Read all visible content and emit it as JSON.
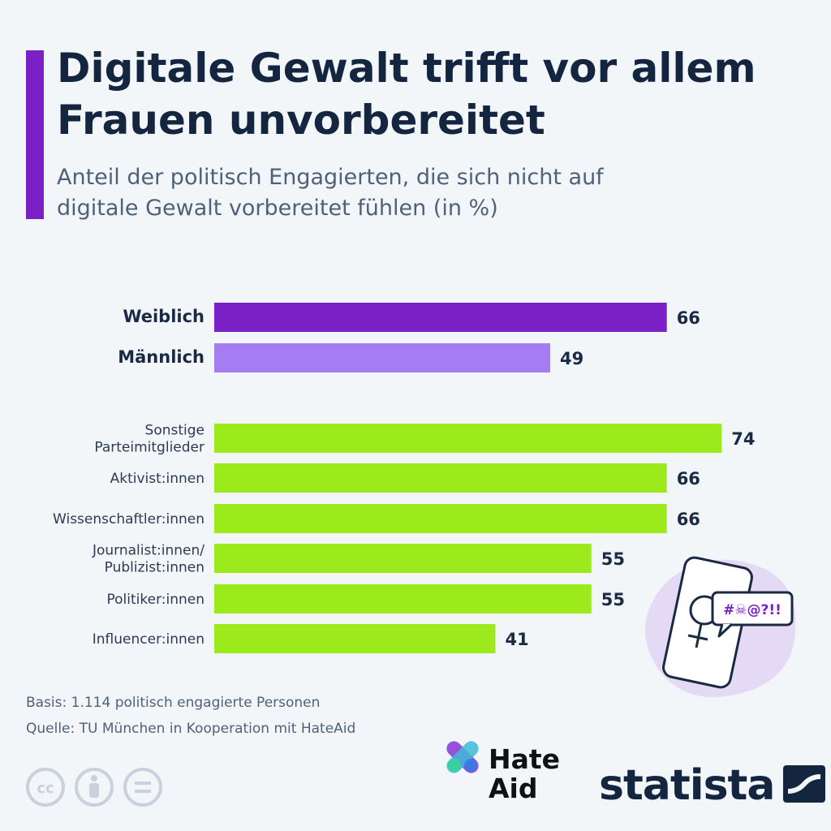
{
  "header": {
    "title": "Digitale Gewalt trifft vor allem Frauen unvorbereitet",
    "subtitle": "Anteil der politisch Engagierten, die sich nicht auf digitale Gewalt vorbereitet fühlen (in %)"
  },
  "chart_data": {
    "type": "bar",
    "orientation": "horizontal",
    "title": "Digitale Gewalt trifft vor allem Frauen unvorbereitet",
    "subtitle": "Anteil der politisch Engagierten, die sich nicht auf digitale Gewalt vorbereitet fühlen (in %)",
    "xlim": [
      0,
      100
    ],
    "grid": false,
    "groups": [
      {
        "kind": "gender",
        "categories": [
          "Weiblich",
          "Männlich"
        ],
        "values": [
          66,
          49
        ],
        "colors": [
          "#7b1fc7",
          "#a57cf2"
        ]
      },
      {
        "kind": "group",
        "categories": [
          "Sonstige\nParteimitglieder",
          "Aktivist:innen",
          "Wissenschaftler:innen",
          "Journalist:innen/\nPublizist:innen",
          "Politiker:innen",
          "Influencer:innen"
        ],
        "values": [
          74,
          66,
          66,
          55,
          55,
          41
        ],
        "colors": [
          "#9cea1c",
          "#9cea1c",
          "#9cea1c",
          "#9cea1c",
          "#9cea1c",
          "#9cea1c"
        ]
      }
    ]
  },
  "illustration": {
    "speech_text": "#☠@?!!",
    "icons": [
      "smartphone-icon",
      "female-symbol-icon",
      "speech-bubble-icon"
    ]
  },
  "footer": {
    "basis": "Basis: 1.114 politisch engagierte Personen",
    "source": "Quelle: TU München in Kooperation mit HateAid",
    "license_icons": [
      "cc-icon",
      "attribution-icon",
      "no-derivatives-icon"
    ]
  },
  "logos": {
    "hateaid": "Hate\nAid",
    "statista": "statista"
  },
  "colors": {
    "accent": "#7b1fc7",
    "female": "#7b1fc7",
    "male": "#a57cf2",
    "groups": "#9cea1c",
    "text": "#142540"
  }
}
